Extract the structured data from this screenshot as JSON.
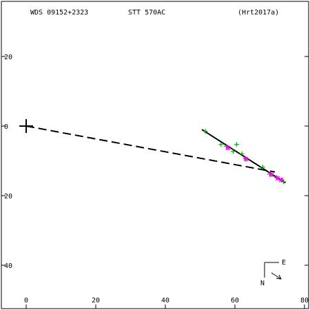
{
  "header": {
    "system_id": "WDS 09152+2323",
    "pair": "STT 570AC",
    "reference": "(Hrt2017a)"
  },
  "compass": {
    "east_label": "E",
    "north_label": "N"
  },
  "chart_data": {
    "type": "scatter",
    "title": "WDS 09152+2323 STT 570AC (Hrt2017a)",
    "xlabel": "",
    "ylabel": "",
    "xlim": [
      -7,
      82
    ],
    "ylim": [
      -53,
      35
    ],
    "x_ticks": [
      0,
      20,
      40,
      60,
      80
    ],
    "y_ticks": [
      20,
      0,
      -20,
      -40
    ],
    "x_tick_labels": [
      "0",
      "20",
      "40",
      "60",
      "80"
    ],
    "y_tick_labels": [
      "20",
      "0",
      "20",
      "40"
    ],
    "primary": {
      "x": 0,
      "y": 0
    },
    "series": [
      {
        "marker": "plus",
        "color": "#00aa00",
        "x": [
          51.5,
          56.0,
          57.5,
          59.5,
          60.5,
          62.0,
          63.0,
          68.0,
          70.0,
          72.0,
          73.5,
          74.0
        ],
        "y": [
          -1.5,
          -5.3,
          -5.8,
          -7.3,
          -5.3,
          -8.0,
          -9.3,
          -11.8,
          -13.8,
          -14.8,
          -15.5,
          -16.0
        ]
      },
      {
        "marker": "asterisk",
        "color": "#ff00ff",
        "x": [
          58.0,
          63.2,
          70.5,
          72.3,
          73.3
        ],
        "y": [
          -6.3,
          -9.5,
          -14.0,
          -15.0,
          -15.5
        ]
      }
    ],
    "fit_line": {
      "x": [
        50.5,
        74.5
      ],
      "y": [
        -1.0,
        -16.3
      ]
    },
    "dashed_line": {
      "x": [
        0,
        71.5
      ],
      "y": [
        0,
        -13.2
      ]
    }
  }
}
